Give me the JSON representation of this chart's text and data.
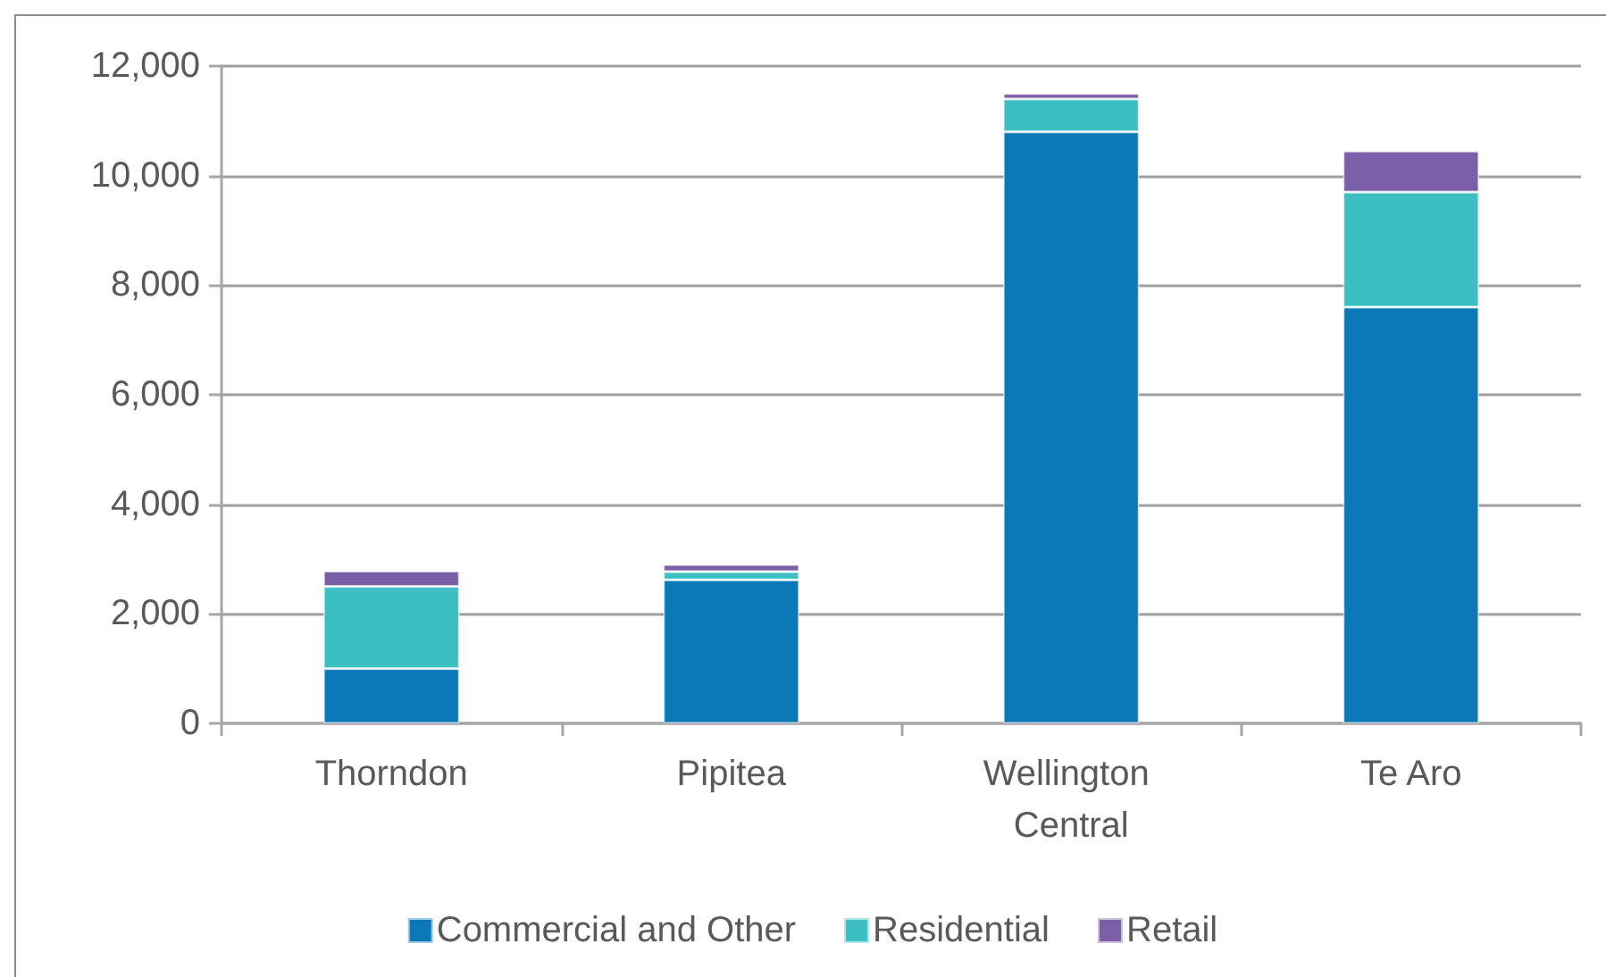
{
  "chart_data": {
    "type": "bar",
    "stacked": true,
    "categories": [
      "Thorndon",
      "Pipitea",
      "Wellington Central",
      "Te Aro"
    ],
    "series": [
      {
        "name": "Commercial and Other",
        "color": "#0b78b7",
        "values": [
          1000,
          2620,
          10800,
          7600
        ]
      },
      {
        "name": "Residential",
        "color": "#3bbfc3",
        "values": [
          1500,
          150,
          600,
          2100
        ]
      },
      {
        "name": "Retail",
        "color": "#7b5fa8",
        "values": [
          280,
          130,
          100,
          750
        ]
      }
    ],
    "ylim": [
      0,
      12000
    ],
    "yticks": [
      0,
      {
        "value": 2000,
        "label": "2,000"
      },
      {
        "value": 4000,
        "label": "4,000"
      },
      {
        "value": 6000,
        "label": "6,000"
      },
      {
        "value": 8000,
        "label": "8,000"
      },
      {
        "value": 10000,
        "label": "10,000"
      },
      {
        "value": 12000,
        "label": "12,000"
      }
    ],
    "grid": "y",
    "legend": "bottom"
  }
}
